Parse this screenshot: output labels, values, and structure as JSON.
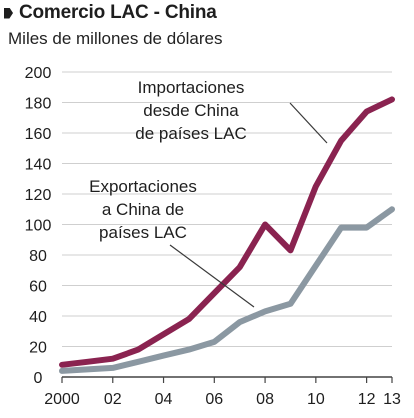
{
  "header": {
    "title": "Comercio LAC - China",
    "subtitle": "Miles de millones de dólares"
  },
  "colors": {
    "imports": "#8a2350",
    "exports": "#8b98a2",
    "grid": "#cfcfcf",
    "text": "#1e1e1e",
    "leader": "#3a3a3a"
  },
  "chart_data": {
    "type": "line",
    "title": "Comercio LAC - China",
    "subtitle": "Miles de millones de dólares",
    "xlabel": "",
    "ylabel": "",
    "x": [
      2000,
      2001,
      2002,
      2003,
      2004,
      2005,
      2006,
      2007,
      2008,
      2009,
      2010,
      2011,
      2012,
      2013
    ],
    "xlim": [
      2000,
      2013
    ],
    "ylim": [
      0,
      200
    ],
    "y_ticks": [
      0,
      20,
      40,
      60,
      80,
      100,
      120,
      140,
      160,
      180,
      200
    ],
    "x_ticks": [
      2000,
      2002,
      2004,
      2006,
      2008,
      2010,
      2012,
      2013
    ],
    "x_tick_labels": [
      "2000",
      "02",
      "04",
      "06",
      "08",
      "10",
      "12",
      "13"
    ],
    "grid": true,
    "series": [
      {
        "name": "Importaciones desde China de países LAC",
        "label_lines": [
          "Importaciones",
          "desde China",
          "de países LAC"
        ],
        "color": "#8a2350",
        "values": [
          8,
          10,
          12,
          18,
          28,
          38,
          55,
          72,
          100,
          83,
          125,
          155,
          174,
          182
        ]
      },
      {
        "name": "Exportaciones a China de países LAC",
        "label_lines": [
          "Exportaciones",
          "a China  de",
          "países LAC"
        ],
        "color": "#8b98a2",
        "values": [
          4,
          5,
          6,
          10,
          14,
          18,
          23,
          36,
          43,
          48,
          73,
          98,
          98,
          110
        ]
      }
    ]
  }
}
